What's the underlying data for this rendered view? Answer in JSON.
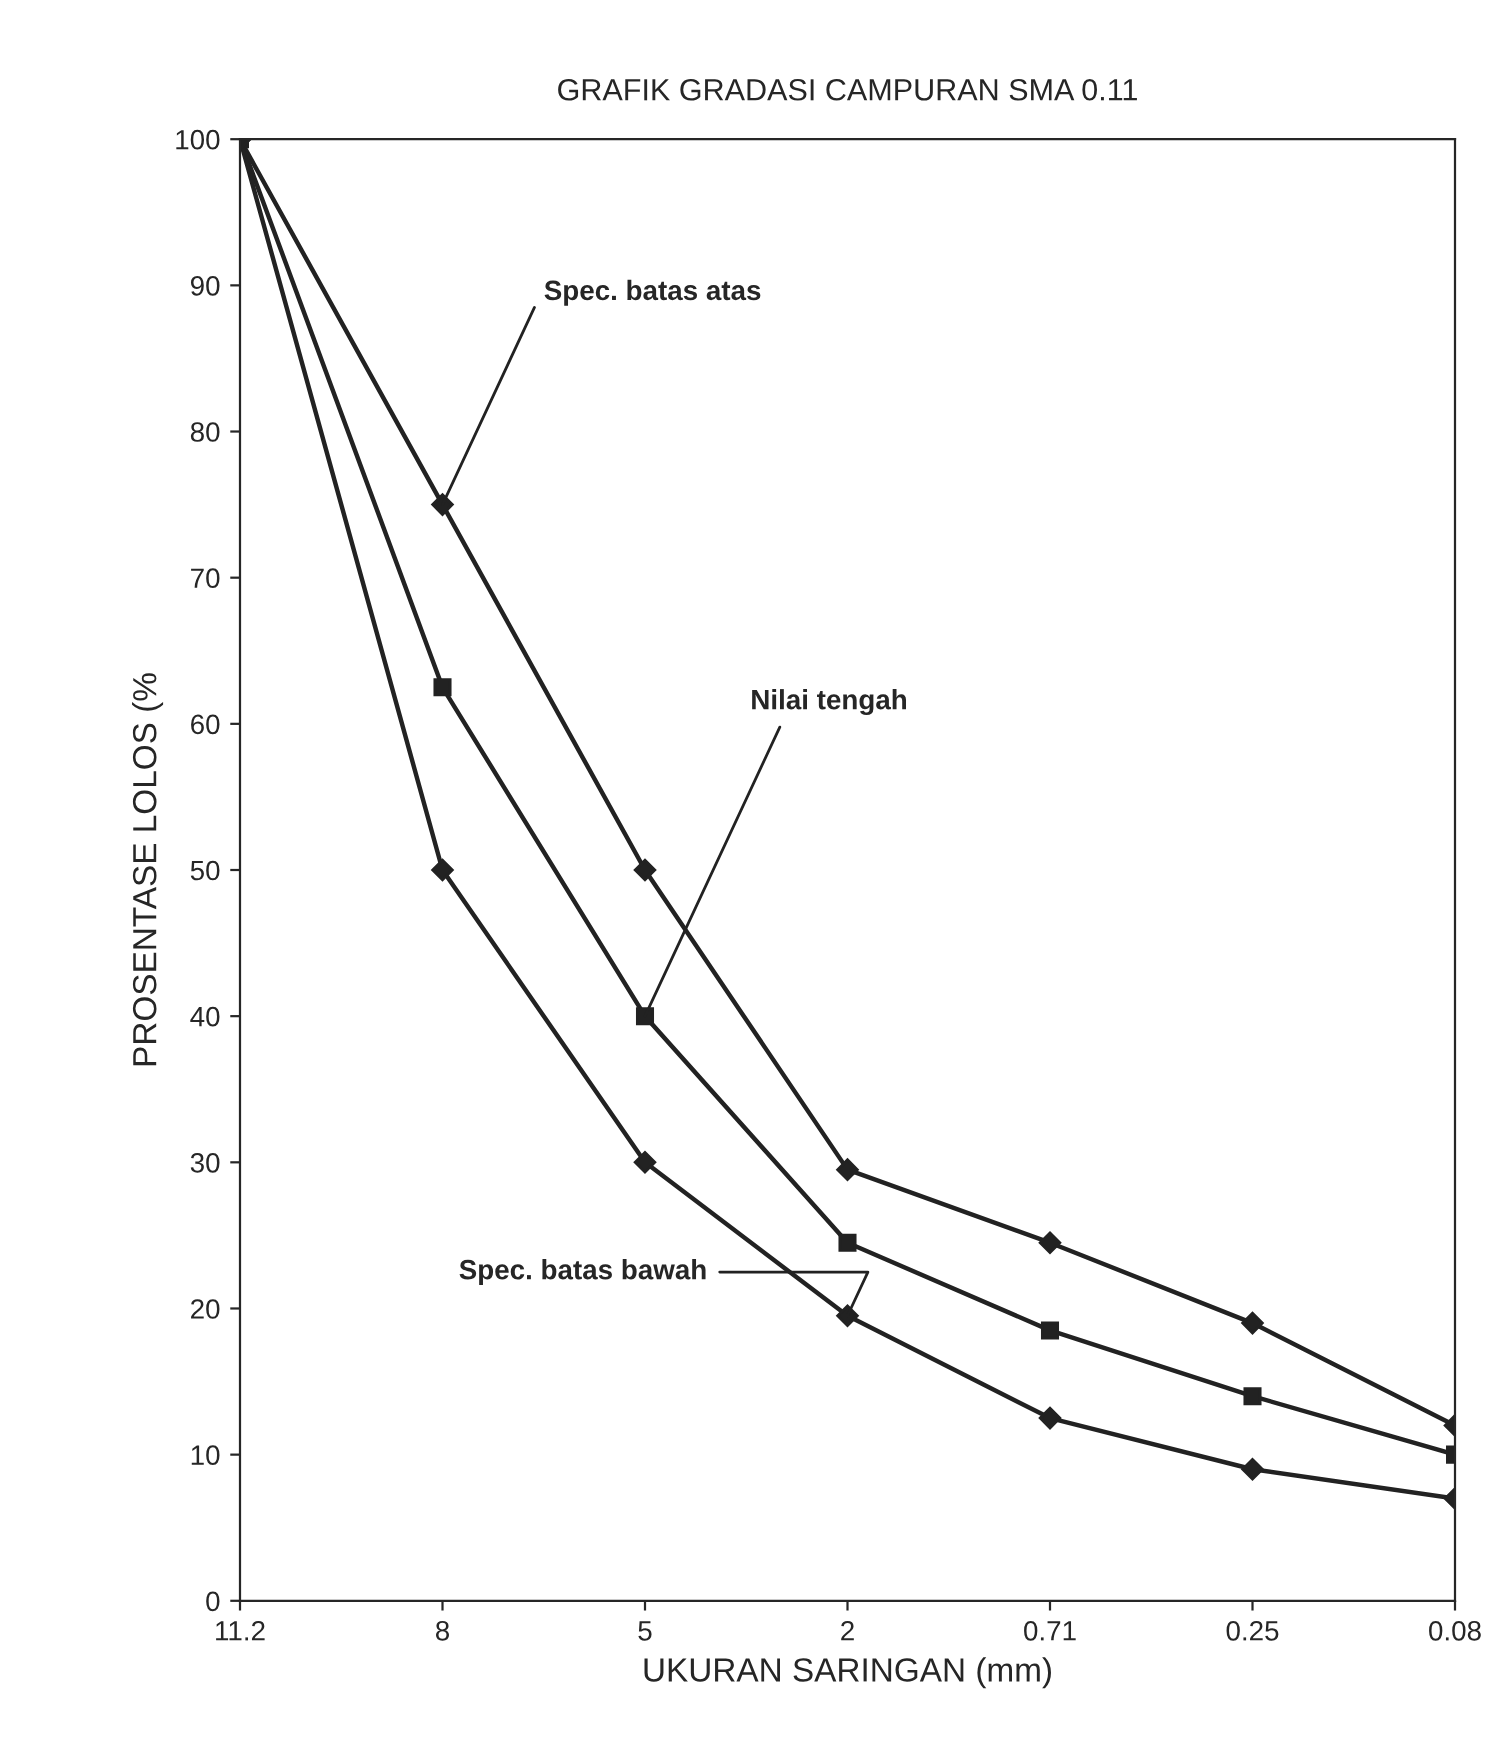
{
  "chart_data": {
    "type": "line",
    "title": "GRAFIK GRADASI CAMPURAN SMA 0.11",
    "xlabel": "UKURAN SARINGAN (mm)",
    "ylabel": "PROSENTASE LOLOS (%",
    "categories": [
      "11.2",
      "8",
      "5",
      "2",
      "0.71",
      "0.25",
      "0.08"
    ],
    "series": [
      {
        "color": "#222222",
        "marker": "diamond",
        "values": [
          100,
          75,
          50,
          29.5,
          24.5,
          19,
          12
        ]
      },
      {
        "color": "#222222",
        "marker": "square",
        "values": [
          100,
          62.5,
          40,
          24.5,
          18.5,
          14,
          10
        ]
      },
      {
        "color": "#222222",
        "marker": "diamond",
        "values": [
          100,
          50,
          30,
          19.5,
          12.5,
          9,
          7
        ]
      }
    ],
    "ylim": [
      0,
      100
    ],
    "yticks": [
      0,
      10,
      20,
      30,
      40,
      50,
      60,
      70,
      80,
      90,
      100
    ],
    "grid": false,
    "legend": false,
    "line_style": "solid",
    "annotations": [
      {
        "text": "Spec. batas atas",
        "x": "8",
        "y": 75
      },
      {
        "text": "Nilai tengah",
        "x": "5",
        "y": 40
      },
      {
        "text": "Spec. batas bawah",
        "x": "2",
        "y": 19.5
      }
    ]
  }
}
